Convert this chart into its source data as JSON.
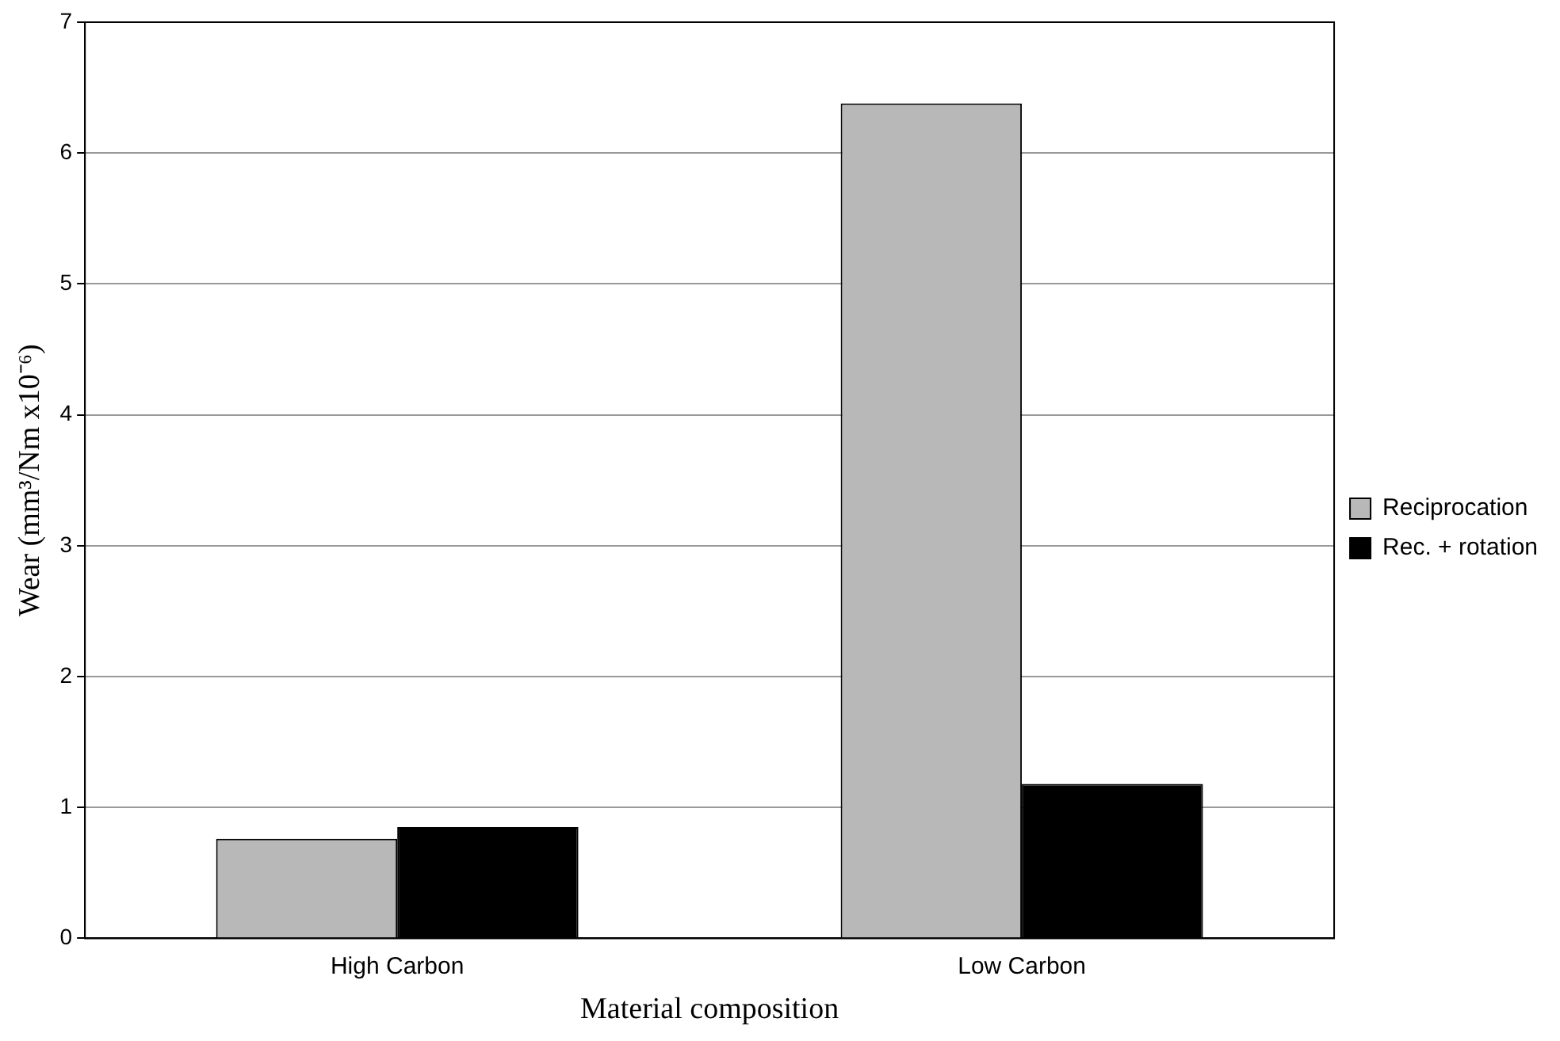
{
  "chart_data": {
    "type": "bar",
    "xlabel": "Material composition",
    "ylabel": "Wear (mm³/Nm x10⁻⁶)",
    "categories": [
      "High Carbon",
      "Low Carbon"
    ],
    "series": [
      {
        "name": "Reciprocation",
        "color": "#b8b8b8",
        "values": [
          0.76,
          6.38
        ]
      },
      {
        "name": "Rec. + rotation",
        "color": "#000000",
        "values": [
          0.85,
          1.18
        ]
      }
    ],
    "ylim": [
      0,
      7
    ],
    "yticks": [
      0,
      1,
      2,
      3,
      4,
      5,
      6,
      7
    ],
    "grid": "y",
    "legend": "right"
  }
}
